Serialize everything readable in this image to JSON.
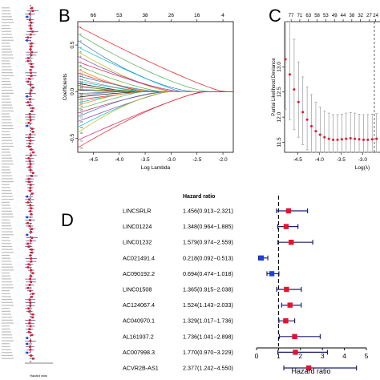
{
  "panels": {
    "b": {
      "letter": "B"
    },
    "c": {
      "letter": "C"
    },
    "d": {
      "letter": "D"
    }
  },
  "colors": {
    "point": "#e8112d",
    "protective": "#1f3fd6",
    "ci": "#1d1f6e",
    "axis": "#000000",
    "path_palette": [
      "#000000",
      "#e41a1c",
      "#4daf4a",
      "#377eb8",
      "#00bcd4",
      "#d81b60",
      "#bdbd00",
      "#888888",
      "#8e44ad",
      "#ff7f00"
    ]
  },
  "chart_data": [
    {
      "type": "forest",
      "panel": "A",
      "note": "left strip — unreadable row labels; rows approximated",
      "xlabel": "Hazard ratio",
      "reference": 1,
      "rows": 120
    },
    {
      "type": "line",
      "panel": "B",
      "xlabel": "Log Lambda",
      "ylabel": "Coefficients",
      "xlim": [
        -4.8,
        -1.8
      ],
      "ylim": [
        -0.65,
        0.75
      ],
      "x_ticks": [
        -4.5,
        -4.0,
        -3.5,
        -3.0,
        -2.5,
        -2.0
      ],
      "y_ticks": [
        -0.5,
        0.0,
        0.5
      ],
      "top_axis_ticks": [
        {
          "x": -4.5,
          "label": "66"
        },
        {
          "x": -4.0,
          "label": "53"
        },
        {
          "x": -3.5,
          "label": "38"
        },
        {
          "x": -3.0,
          "label": "26"
        },
        {
          "x": -2.5,
          "label": "16"
        },
        {
          "x": -2.0,
          "label": "4"
        }
      ],
      "paths": [
        {
          "end": 0.7,
          "color": 1
        },
        {
          "end": 0.62,
          "color": 2
        },
        {
          "end": 0.55,
          "color": 3
        },
        {
          "end": 0.48,
          "color": 4
        },
        {
          "end": 0.43,
          "color": 6
        },
        {
          "end": 0.38,
          "color": 8
        },
        {
          "end": 0.32,
          "color": 5
        },
        {
          "end": 0.28,
          "color": 2
        },
        {
          "end": 0.24,
          "color": 9
        },
        {
          "end": 0.2,
          "color": 1
        },
        {
          "end": 0.17,
          "color": 3
        },
        {
          "end": 0.14,
          "color": 7
        },
        {
          "end": 0.11,
          "color": 4
        },
        {
          "end": 0.09,
          "color": 0
        },
        {
          "end": 0.07,
          "color": 5
        },
        {
          "end": 0.05,
          "color": 2
        },
        {
          "end": 0.03,
          "color": 6
        },
        {
          "end": 0.02,
          "color": 0
        },
        {
          "end": -0.02,
          "color": 3
        },
        {
          "end": -0.04,
          "color": 7
        },
        {
          "end": -0.06,
          "color": 0
        },
        {
          "end": -0.09,
          "color": 1
        },
        {
          "end": -0.12,
          "color": 4
        },
        {
          "end": -0.15,
          "color": 9
        },
        {
          "end": -0.19,
          "color": 2
        },
        {
          "end": -0.23,
          "color": 5
        },
        {
          "end": -0.27,
          "color": 3
        },
        {
          "end": -0.32,
          "color": 8
        },
        {
          "end": -0.38,
          "color": 4
        },
        {
          "end": -0.44,
          "color": 6
        },
        {
          "end": -0.52,
          "color": 5
        },
        {
          "end": -0.6,
          "color": 1
        }
      ]
    },
    {
      "type": "scatter",
      "panel": "C",
      "xlabel": "Log(λ)",
      "ylabel": "Partial Likelihood Deviance",
      "xlim": [
        -4.8,
        -2.6
      ],
      "ylim": [
        11.3,
        13.9
      ],
      "x_ticks": [
        -4.5,
        -4.0,
        -3.5,
        -3.0
      ],
      "y_ticks": [
        11.5,
        12.0,
        12.5,
        13.0
      ],
      "top_axis_ticks": [
        {
          "x": -4.65,
          "label": "77"
        },
        {
          "x": -4.45,
          "label": "71"
        },
        {
          "x": -4.25,
          "label": "63"
        },
        {
          "x": -4.05,
          "label": "58"
        },
        {
          "x": -3.85,
          "label": "53"
        },
        {
          "x": -3.65,
          "label": "49"
        },
        {
          "x": -3.45,
          "label": "44"
        },
        {
          "x": -3.25,
          "label": "38"
        },
        {
          "x": -3.05,
          "label": "32"
        },
        {
          "x": -2.85,
          "label": "27"
        },
        {
          "x": -2.7,
          "label": "24"
        }
      ],
      "vline": -2.73,
      "points": [
        {
          "x": -4.78,
          "y": 13.15,
          "lo": 12.15,
          "hi": 14.15
        },
        {
          "x": -4.68,
          "y": 12.85,
          "lo": 11.95,
          "hi": 13.95
        },
        {
          "x": -4.58,
          "y": 12.55,
          "lo": 11.75,
          "hi": 13.55
        },
        {
          "x": -4.48,
          "y": 12.3,
          "lo": 11.6,
          "hi": 13.1
        },
        {
          "x": -4.38,
          "y": 12.1,
          "lo": 11.45,
          "hi": 12.8
        },
        {
          "x": -4.28,
          "y": 11.95,
          "lo": 11.35,
          "hi": 12.6
        },
        {
          "x": -4.18,
          "y": 11.82,
          "lo": 11.25,
          "hi": 12.45
        },
        {
          "x": -4.08,
          "y": 11.72,
          "lo": 11.2,
          "hi": 12.3
        },
        {
          "x": -3.98,
          "y": 11.65,
          "lo": 11.15,
          "hi": 12.2
        },
        {
          "x": -3.88,
          "y": 11.6,
          "lo": 11.1,
          "hi": 12.12
        },
        {
          "x": -3.78,
          "y": 11.57,
          "lo": 11.08,
          "hi": 12.08
        },
        {
          "x": -3.68,
          "y": 11.55,
          "lo": 11.05,
          "hi": 12.05
        },
        {
          "x": -3.58,
          "y": 11.55,
          "lo": 11.05,
          "hi": 12.05
        },
        {
          "x": -3.48,
          "y": 11.56,
          "lo": 11.05,
          "hi": 12.06
        },
        {
          "x": -3.38,
          "y": 11.57,
          "lo": 11.06,
          "hi": 12.08
        },
        {
          "x": -3.28,
          "y": 11.58,
          "lo": 11.07,
          "hi": 12.09
        },
        {
          "x": -3.18,
          "y": 11.57,
          "lo": 11.06,
          "hi": 12.08
        },
        {
          "x": -3.08,
          "y": 11.56,
          "lo": 11.05,
          "hi": 12.06
        },
        {
          "x": -2.98,
          "y": 11.55,
          "lo": 11.05,
          "hi": 12.05
        },
        {
          "x": -2.88,
          "y": 11.55,
          "lo": 11.05,
          "hi": 12.05
        },
        {
          "x": -2.78,
          "y": 11.56,
          "lo": 11.06,
          "hi": 12.06
        },
        {
          "x": -2.68,
          "y": 11.57,
          "lo": 11.07,
          "hi": 12.07
        }
      ]
    },
    {
      "type": "forest",
      "panel": "D",
      "column_header": "Hazard ratio",
      "xlabel": "Hazard ratio",
      "xlim": [
        0,
        5
      ],
      "x_ticks": [
        0,
        1,
        2,
        3,
        4,
        5
      ],
      "reference": 1,
      "rows": [
        {
          "gene": "LINCSRLR",
          "hr_text": "1.456(0.913−2.321)",
          "hr": 1.456,
          "lo": 0.913,
          "hi": 2.321
        },
        {
          "gene": "LINC01224",
          "hr_text": "1.348(0.964−1.885)",
          "hr": 1.348,
          "lo": 0.964,
          "hi": 1.885
        },
        {
          "gene": "LINC01232",
          "hr_text": "1.579(0.974−2.559)",
          "hr": 1.579,
          "lo": 0.974,
          "hi": 2.559
        },
        {
          "gene": "AC021491.4",
          "hr_text": "0.218(0.092−0.513)",
          "hr": 0.218,
          "lo": 0.092,
          "hi": 0.513
        },
        {
          "gene": "AC090192.2",
          "hr_text": "0.694(0.474−1.018)",
          "hr": 0.694,
          "lo": 0.474,
          "hi": 1.018
        },
        {
          "gene": "LINC01508",
          "hr_text": "1.365(0.915−2.038)",
          "hr": 1.365,
          "lo": 0.915,
          "hi": 2.038
        },
        {
          "gene": "AC124067.4",
          "hr_text": "1.524(1.143−2.033)",
          "hr": 1.524,
          "lo": 1.143,
          "hi": 2.033
        },
        {
          "gene": "AC040970.1",
          "hr_text": "1.329(1.017−1.736)",
          "hr": 1.329,
          "lo": 1.017,
          "hi": 1.736
        },
        {
          "gene": "AL161937.2",
          "hr_text": "1.736(1.041−2.898)",
          "hr": 1.736,
          "lo": 1.041,
          "hi": 2.898
        },
        {
          "gene": "AC007998.3",
          "hr_text": "1.770(0.970−3.229)",
          "hr": 1.77,
          "lo": 0.97,
          "hi": 3.229
        },
        {
          "gene": "ACVR2B-AS1",
          "hr_text": "2.377(1.242−4.550)",
          "hr": 2.377,
          "lo": 1.242,
          "hi": 4.55
        }
      ]
    }
  ]
}
